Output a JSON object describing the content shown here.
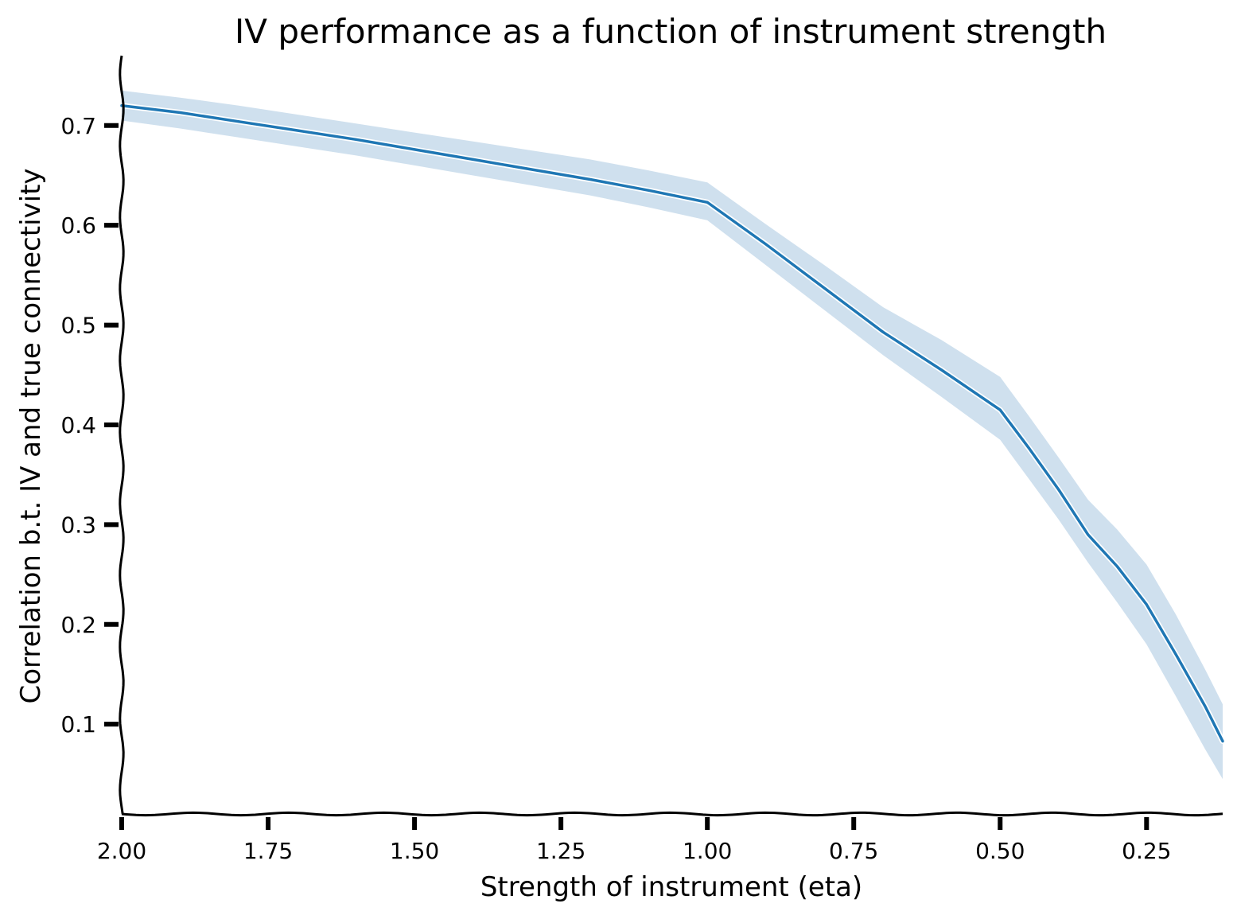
{
  "chart_data": {
    "type": "line",
    "title": "IV performance as a function of instrument strength",
    "xlabel": "Strength of instrument (eta)",
    "ylabel": "Correlation b.t. IV and true connectivity",
    "x_reversed": true,
    "xlim": [
      2.0,
      0.12
    ],
    "ylim": [
      0.01,
      0.77
    ],
    "xticks": [
      2.0,
      1.75,
      1.5,
      1.25,
      1.0,
      0.75,
      0.5,
      0.25
    ],
    "xtick_labels": [
      "2.00",
      "1.75",
      "1.50",
      "1.25",
      "1.00",
      "0.75",
      "0.50",
      "0.25"
    ],
    "yticks": [
      0.1,
      0.2,
      0.3,
      0.4,
      0.5,
      0.6,
      0.7
    ],
    "ytick_labels": [
      "0.1",
      "0.2",
      "0.3",
      "0.4",
      "0.5",
      "0.6",
      "0.7"
    ],
    "grid": false,
    "style": "xkcd",
    "series": [
      {
        "color": "#1f77b4",
        "band_color": "#cfe0ee",
        "x": [
          2.0,
          1.9,
          1.8,
          1.7,
          1.6,
          1.5,
          1.4,
          1.3,
          1.2,
          1.1,
          1.0,
          0.9,
          0.8,
          0.7,
          0.6,
          0.5,
          0.45,
          0.4,
          0.35,
          0.3,
          0.25,
          0.2,
          0.15,
          0.12
        ],
        "values": [
          0.72,
          0.713,
          0.704,
          0.695,
          0.686,
          0.676,
          0.666,
          0.656,
          0.646,
          0.635,
          0.623,
          0.581,
          0.537,
          0.493,
          0.455,
          0.415,
          0.376,
          0.335,
          0.29,
          0.258,
          0.22,
          0.17,
          0.118,
          0.083
        ],
        "lower": [
          0.705,
          0.697,
          0.688,
          0.679,
          0.67,
          0.66,
          0.65,
          0.64,
          0.63,
          0.618,
          0.605,
          0.56,
          0.515,
          0.47,
          0.428,
          0.385,
          0.345,
          0.305,
          0.262,
          0.222,
          0.18,
          0.128,
          0.075,
          0.045
        ],
        "upper": [
          0.735,
          0.728,
          0.72,
          0.711,
          0.702,
          0.693,
          0.684,
          0.675,
          0.666,
          0.655,
          0.643,
          0.601,
          0.56,
          0.518,
          0.485,
          0.448,
          0.408,
          0.367,
          0.325,
          0.295,
          0.26,
          0.21,
          0.155,
          0.12
        ]
      }
    ]
  }
}
